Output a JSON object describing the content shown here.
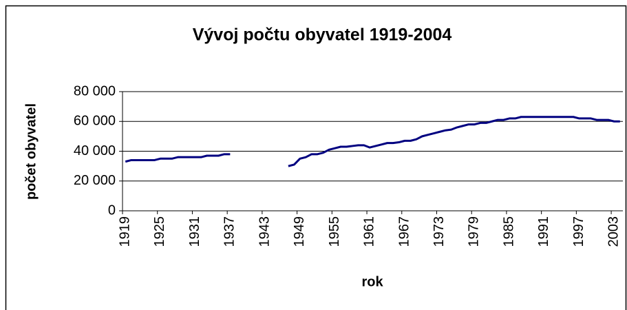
{
  "chart_data": {
    "type": "line",
    "title": "Vývoj počtu obyvatel 1919-2004",
    "x_label": "rok",
    "y_label": "počet obyvatel",
    "categories": [
      "1919",
      null,
      null,
      null,
      null,
      null,
      "1925",
      null,
      null,
      null,
      null,
      null,
      "1931",
      null,
      null,
      null,
      null,
      null,
      "1937",
      null,
      null,
      null,
      null,
      null,
      "1943",
      null,
      null,
      null,
      null,
      null,
      "1949",
      null,
      null,
      null,
      null,
      null,
      "1955",
      null,
      null,
      null,
      null,
      null,
      "1961",
      null,
      null,
      null,
      null,
      null,
      "1967",
      null,
      null,
      null,
      null,
      null,
      "1973",
      null,
      null,
      null,
      null,
      null,
      "1979",
      null,
      null,
      null,
      null,
      null,
      "1985",
      null,
      null,
      null,
      null,
      null,
      "1991",
      null,
      null,
      null,
      null,
      null,
      "1997",
      null,
      null,
      null,
      null,
      null,
      "2003",
      null
    ],
    "series": [
      {
        "name": "počet obyvatel",
        "color": "#000080",
        "values": [
          33000,
          34000,
          34000,
          34000,
          34000,
          34000,
          35000,
          35000,
          35000,
          36000,
          36000,
          36000,
          36000,
          36000,
          37000,
          37000,
          37000,
          38000,
          38000,
          null,
          null,
          null,
          null,
          null,
          null,
          null,
          null,
          null,
          30000,
          31000,
          35000,
          36000,
          38000,
          38000,
          39000,
          41000,
          42000,
          43000,
          43000,
          43500,
          44000,
          44000,
          42500,
          43500,
          44500,
          45500,
          45500,
          46000,
          47000,
          47000,
          48000,
          50000,
          51000,
          52000,
          53000,
          54000,
          54500,
          56000,
          57000,
          58000,
          58000,
          59000,
          59000,
          60000,
          61000,
          61000,
          62000,
          62000,
          63000,
          63000,
          63000,
          63000,
          63000,
          63000,
          63000,
          63000,
          63000,
          63000,
          62000,
          62000,
          62000,
          61000,
          61000,
          61000,
          60000,
          60000
        ]
      }
    ],
    "ylim": [
      0,
      80000
    ],
    "yticks": [
      0,
      {
        "value": 20000,
        "label": "20 000"
      },
      {
        "value": 40000,
        "label": "40 000"
      },
      {
        "value": 60000,
        "label": "60 000"
      },
      {
        "value": 80000,
        "label": "80 000"
      }
    ],
    "grid": true
  }
}
